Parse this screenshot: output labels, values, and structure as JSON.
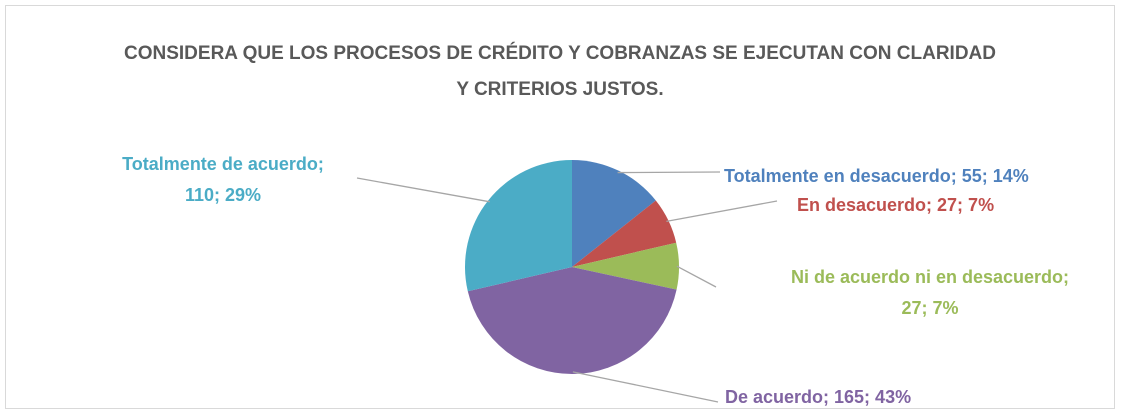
{
  "chart_data": {
    "type": "pie",
    "title": "CONSIDERA QUE LOS PROCESOS DE CRÉDITO Y COBRANZAS SE EJECUTAN CON CLARIDAD Y CRITERIOS JUSTOS.",
    "categories": [
      "Totalmente en desacuerdo",
      "En desacuerdo",
      "Ni de acuerdo ni en desacuerdo",
      "De acuerdo",
      "Totalmente de acuerdo"
    ],
    "values": [
      55,
      27,
      27,
      165,
      110
    ],
    "value_labels": [
      "Totalmente en desacuerdo; 55; 14%",
      "En desacuerdo; 27; 7%",
      "Ni de acuerdo ni en desacuerdo; 27; 7%",
      "De acuerdo; 165; 43%",
      "Totalmente de acuerdo; 110; 29%"
    ],
    "colors": [
      "#4f81bd",
      "#c0504d",
      "#9bbb59",
      "#8064a2",
      "#4bacc6"
    ]
  }
}
